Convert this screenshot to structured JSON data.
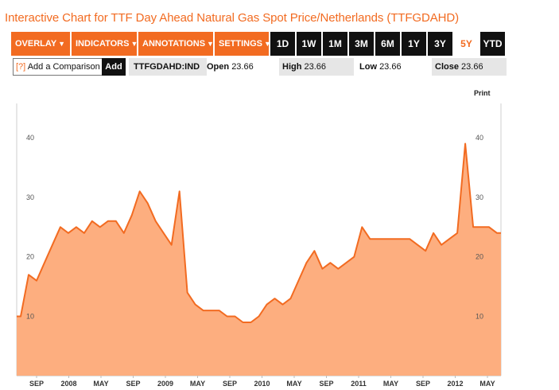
{
  "title": "Interactive Chart for TTF Day Ahead Natural Gas Spot Price/Netherlands (TTFGDAHD)",
  "toolbar": {
    "menus": [
      {
        "label": "OVERLAY",
        "caret": "▼"
      },
      {
        "label": "INDICATORS",
        "caret": "▼"
      },
      {
        "label": "ANNOTATIONS",
        "caret": "▼"
      },
      {
        "label": "SETTINGS",
        "caret": "▼"
      }
    ],
    "ranges": [
      "1D",
      "1W",
      "1M",
      "3M",
      "6M",
      "1Y",
      "3Y",
      "5Y",
      "YTD"
    ],
    "active_range": "5Y"
  },
  "compare": {
    "help": "[?]",
    "label": "Add a Comparison",
    "add_button": "Add"
  },
  "quote": {
    "ticker": "TTFGDAHD:IND",
    "open_label": "Open",
    "open": "23.66",
    "high_label": "High",
    "high": "23.66",
    "low_label": "Low",
    "low": "23.66",
    "close_label": "Close",
    "close": "23.66"
  },
  "print_label": "Print",
  "colors": {
    "accent": "#f26b21",
    "area_fill": "#fdae7f",
    "line": "#f26b21"
  },
  "chart_data": {
    "type": "area",
    "y_ticks": [
      "10",
      "20",
      "30",
      "40"
    ],
    "x_tick_labels": [
      "SEP",
      "2008",
      "MAY",
      "SEP",
      "2009",
      "MAY",
      "SEP",
      "2010",
      "MAY",
      "SEP",
      "2011",
      "MAY",
      "SEP",
      "2012",
      "MAY"
    ],
    "x": [
      "2007-06",
      "2007-07",
      "2007-08",
      "2007-09",
      "2007-10",
      "2007-11",
      "2007-12",
      "2008-01",
      "2008-02",
      "2008-03",
      "2008-04",
      "2008-05",
      "2008-06",
      "2008-07",
      "2008-08",
      "2008-09",
      "2008-10",
      "2008-11",
      "2008-12",
      "2009-01",
      "2009-02",
      "2009-03",
      "2009-04",
      "2009-05",
      "2009-06",
      "2009-07",
      "2009-08",
      "2009-09",
      "2009-10",
      "2009-11",
      "2009-12",
      "2010-01",
      "2010-02",
      "2010-03",
      "2010-04",
      "2010-05",
      "2010-06",
      "2010-07",
      "2010-08",
      "2010-09",
      "2010-10",
      "2010-11",
      "2010-12",
      "2011-01",
      "2011-02",
      "2011-03",
      "2011-04",
      "2011-05",
      "2011-06",
      "2011-07",
      "2011-08",
      "2011-09",
      "2011-10",
      "2011-11",
      "2011-12",
      "2012-01",
      "2012-02",
      "2012-03",
      "2012-04",
      "2012-05",
      "2012-06"
    ],
    "values": [
      10,
      17,
      16,
      19,
      22,
      25,
      24,
      25,
      24,
      26,
      25,
      26,
      26,
      24,
      27,
      31,
      29,
      26,
      24,
      22,
      31,
      14,
      12,
      11,
      11,
      11,
      10,
      10,
      9,
      9,
      10,
      12,
      13,
      12,
      13,
      16,
      19,
      21,
      18,
      19,
      18,
      19,
      20,
      25,
      23,
      23,
      23,
      23,
      23,
      23,
      22,
      21,
      24,
      22,
      23,
      24,
      39,
      25,
      25,
      25,
      24
    ],
    "ylim": [
      0,
      42
    ],
    "grid": false
  }
}
